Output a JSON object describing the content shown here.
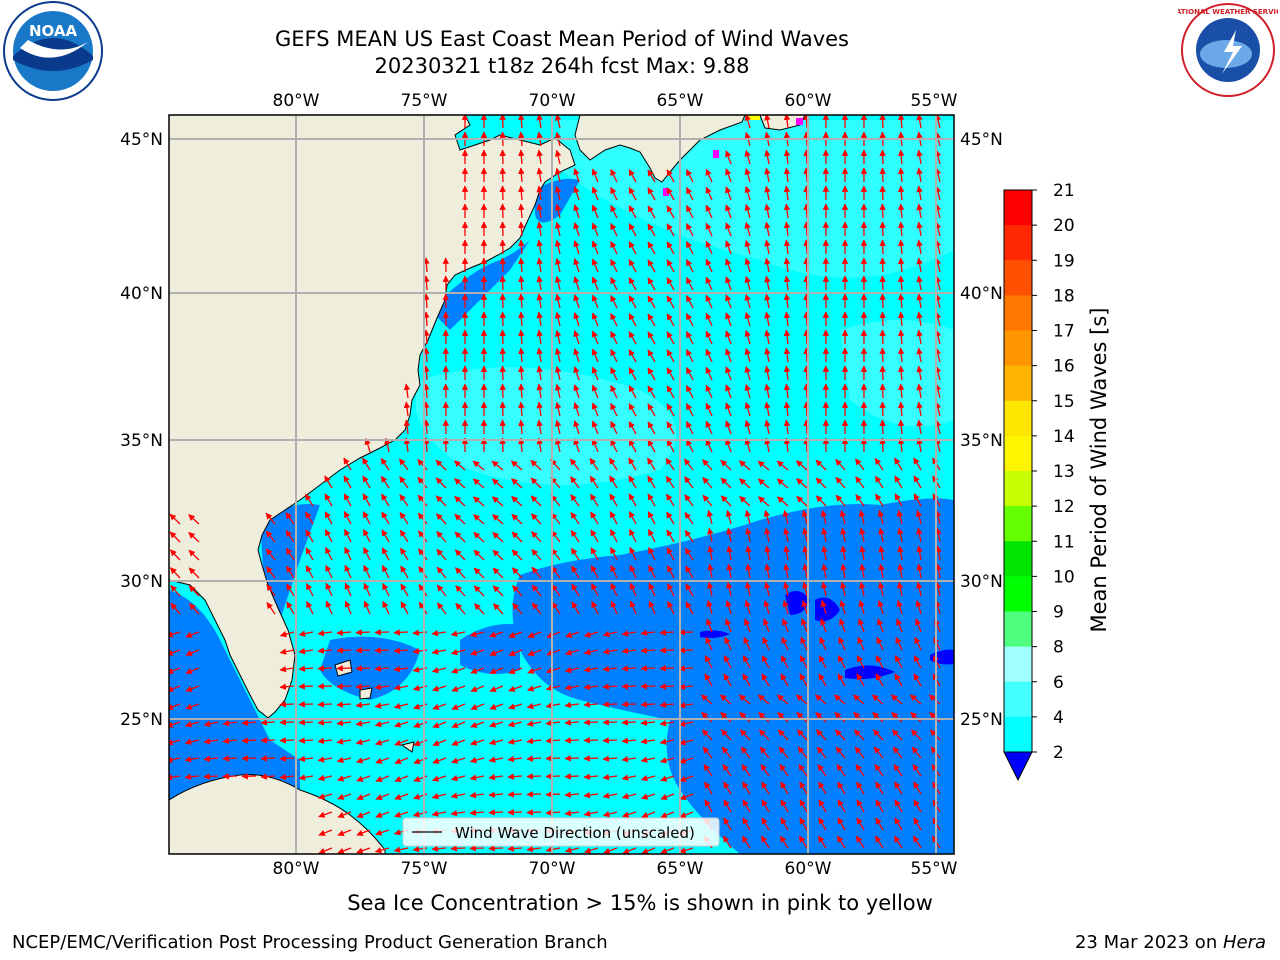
{
  "header": {
    "title_line1": "GEFS MEAN US East Coast Mean Period of Wind Waves",
    "title_line2": "20230321 t18z 264h fcst   Max: 9.88"
  },
  "logos": {
    "left": {
      "name": "noaa-logo",
      "text": "NOAA"
    },
    "right": {
      "name": "nws-logo",
      "text": "NATIONAL WEATHER SERVICE"
    }
  },
  "map": {
    "lon_labels": [
      "80°W",
      "75°W",
      "70°W",
      "65°W",
      "60°W",
      "55°W"
    ],
    "lat_labels": [
      "45°N",
      "40°N",
      "35°N",
      "30°N",
      "25°N"
    ],
    "legend": "Wind Wave Direction (unscaled)",
    "colors": {
      "land": "#efeddc",
      "ocean_light": "#00ffff",
      "ocean_pale": "#43ffff",
      "ocean_dark": "#0080ff",
      "ocean_deep": "#0000ff",
      "arrow": "#ff0000",
      "grid": "#b0b0b0"
    }
  },
  "colorbar": {
    "label": "Mean Period of Wind Waves [s]",
    "ticks": [
      "21",
      "20",
      "19",
      "18",
      "17",
      "16",
      "15",
      "14",
      "13",
      "12",
      "11",
      "10",
      "9",
      "8",
      "6",
      "4",
      "2"
    ],
    "colors": [
      "#ff0000",
      "#ff2800",
      "#ff5000",
      "#ff7800",
      "#ff9600",
      "#ffb400",
      "#ffe600",
      "#fff500",
      "#e6ff00",
      "#c8ff00",
      "#64ff00",
      "#00e600",
      "#00ff00",
      "#50ff80",
      "#a0ffff",
      "#43ffff",
      "#00ffff",
      "#0080ff"
    ],
    "under_color": "#0000ff"
  },
  "note": "Sea Ice Concentration > 15% is shown in pink to yellow",
  "footer": {
    "left": "NCEP/EMC/Verification Post Processing Product Generation Branch",
    "right_prefix": "23 Mar 2023 on ",
    "right_machine": "Hera"
  }
}
